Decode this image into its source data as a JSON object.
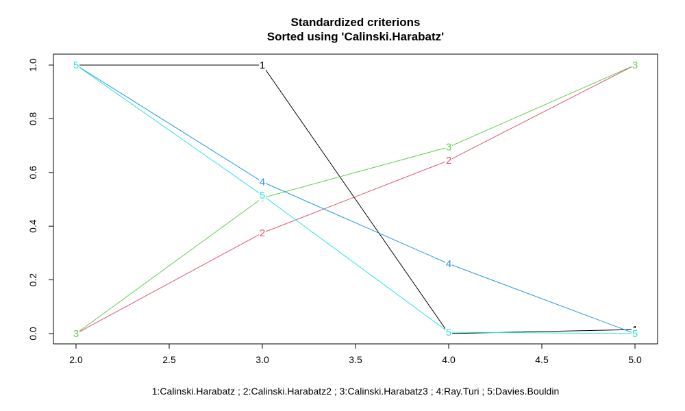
{
  "chart_data": {
    "type": "line",
    "title": "Standardized criterions",
    "subtitle": "Sorted using 'Calinski.Harabatz'",
    "xlabel": "1:Calinski.Harabatz ; 2:Calinski.Harabatz2 ; 3:Calinski.Harabatz3 ; 4:Ray.Turi ; 5:Davies.Bouldin",
    "ylabel": "",
    "x": [
      2,
      3,
      4,
      5
    ],
    "xlim": [
      2,
      5
    ],
    "ylim": [
      0,
      1
    ],
    "xticks": [
      "2.0",
      "2.5",
      "3.0",
      "3.5",
      "4.0",
      "4.5",
      "5.0"
    ],
    "yticks": [
      "0.0",
      "0.2",
      "0.4",
      "0.6",
      "0.8",
      "1.0"
    ],
    "grid": false,
    "legend": "none",
    "series": [
      {
        "marker": "1",
        "color": "#000000",
        "values": [
          1.0,
          1.0,
          0.0,
          0.015
        ]
      },
      {
        "marker": "2",
        "color": "#DF536B",
        "values": [
          0.0,
          0.375,
          0.645,
          1.0
        ]
      },
      {
        "marker": "3",
        "color": "#61D04F",
        "values": [
          0.0,
          0.505,
          0.695,
          1.0
        ]
      },
      {
        "marker": "4",
        "color": "#2297E6",
        "values": [
          1.0,
          0.565,
          0.26,
          0.0
        ]
      },
      {
        "marker": "5",
        "color": "#28E2E5",
        "values": [
          1.0,
          0.515,
          0.005,
          0.0
        ]
      }
    ]
  }
}
